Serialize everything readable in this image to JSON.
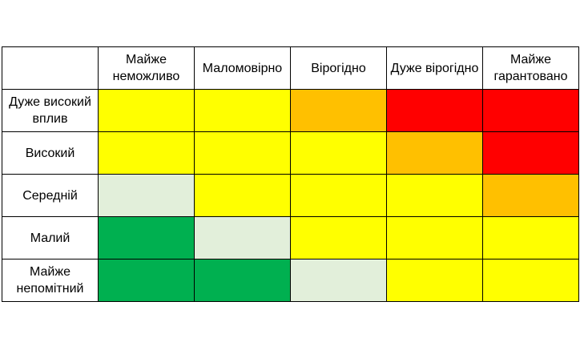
{
  "matrix": {
    "columns": [
      "Майже неможливо",
      "Маломовірно",
      "Вірогідно",
      "Дуже вірогідно",
      "Майже гарантовано"
    ],
    "rows": [
      {
        "label": "Дуже високий вплив",
        "cells": [
          "yellow",
          "yellow",
          "orange",
          "red",
          "red"
        ]
      },
      {
        "label": "Високий",
        "cells": [
          "yellow",
          "yellow",
          "yellow",
          "orange",
          "red"
        ]
      },
      {
        "label": "Середній",
        "cells": [
          "light-green",
          "yellow",
          "yellow",
          "yellow",
          "orange"
        ]
      },
      {
        "label": "Малий",
        "cells": [
          "green",
          "light-green",
          "yellow",
          "yellow",
          "yellow"
        ]
      },
      {
        "label": "Майже непомітний",
        "cells": [
          "green",
          "green",
          "light-green",
          "yellow",
          "yellow"
        ]
      }
    ]
  },
  "colors": {
    "yellow": "#ffff00",
    "orange": "#ffc000",
    "red": "#ff0000",
    "light-green": "#e2efda",
    "green": "#00b050"
  }
}
